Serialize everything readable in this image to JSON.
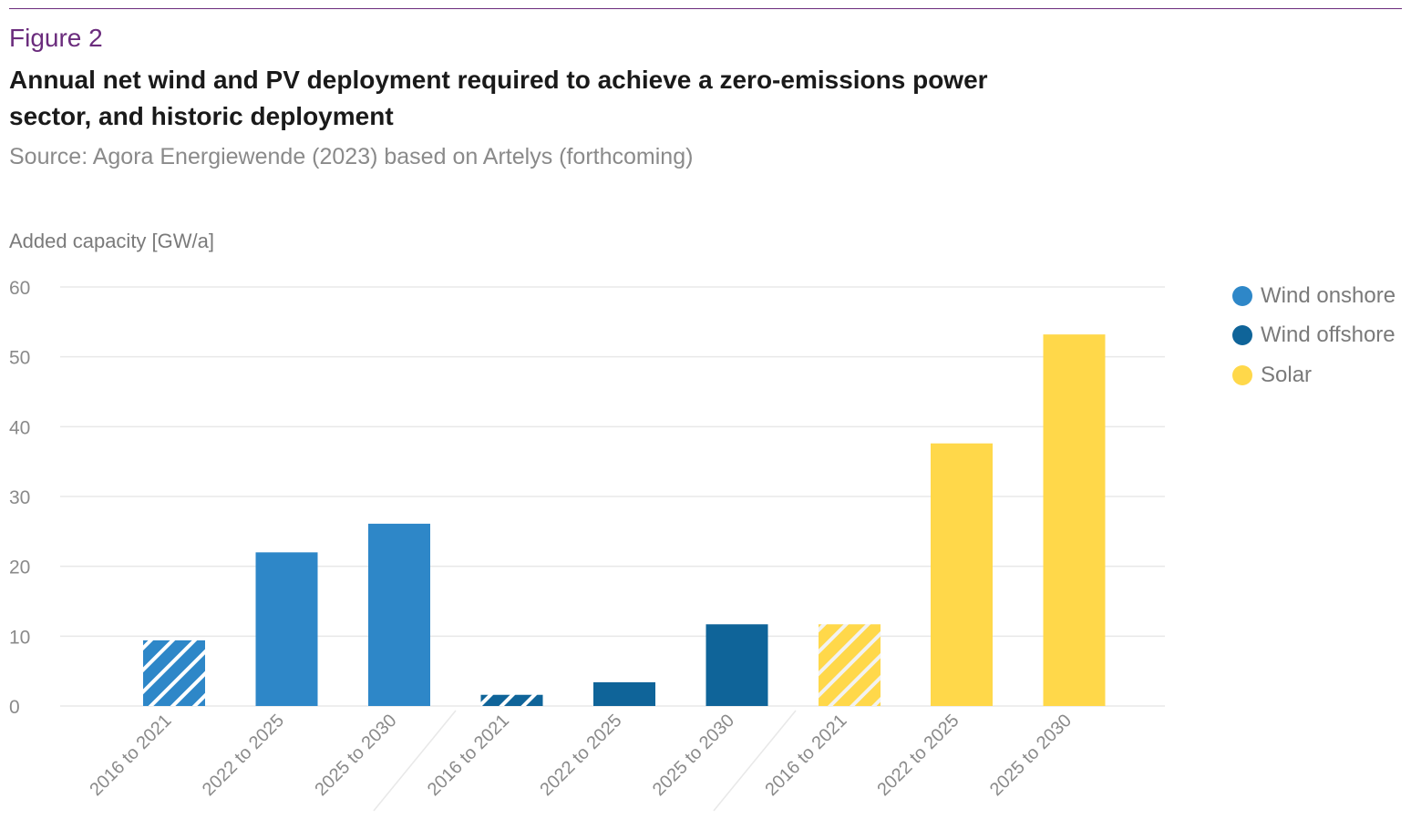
{
  "figure_label": "Figure 2",
  "title": "Annual net wind and PV deployment required to achieve a zero-emissions power sector, and historic deployment",
  "source": "Source: Agora Energiewende (2023) based on Artelys (forthcoming)",
  "colors": {
    "wind_onshore": "#2e87c8",
    "wind_offshore": "#0f6499",
    "solar": "#ffd84a",
    "grid": "#e8e8e8",
    "axis_text": "#8a8a8a",
    "accent": "#6b2c7d"
  },
  "legend": [
    {
      "label": "Wind onshore",
      "color": "#2e87c8"
    },
    {
      "label": "Wind offshore",
      "color": "#0f6499"
    },
    {
      "label": "Solar",
      "color": "#ffd84a"
    }
  ],
  "chart_data": {
    "type": "bar",
    "title": "Annual net wind and PV deployment required to achieve a zero-emissions power sector, and historic deployment",
    "xlabel": "",
    "ylabel": "Added capacity [GW/a]",
    "ylim": [
      0,
      60
    ],
    "yticks": [
      0,
      10,
      20,
      30,
      40,
      50,
      60
    ],
    "grid": true,
    "legend_position": "right",
    "categories": [
      "2016 to 2021",
      "2022 to 2025",
      "2025 to 2030",
      "2016 to 2021",
      "2022 to 2025",
      "2025 to 2030",
      "2016 to 2021",
      "2022 to 2025",
      "2025 to 2030"
    ],
    "bars": [
      {
        "category": "2016 to 2021",
        "series": "Wind onshore",
        "value": 9.4,
        "historic": true
      },
      {
        "category": "2022 to 2025",
        "series": "Wind onshore",
        "value": 22,
        "historic": false
      },
      {
        "category": "2025 to 2030",
        "series": "Wind onshore",
        "value": 26.1,
        "historic": false
      },
      {
        "category": "2016 to 2021",
        "series": "Wind offshore",
        "value": 1.6,
        "historic": true
      },
      {
        "category": "2022 to 2025",
        "series": "Wind offshore",
        "value": 3.4,
        "historic": false
      },
      {
        "category": "2025 to 2030",
        "series": "Wind offshore",
        "value": 11.7,
        "historic": false
      },
      {
        "category": "2016 to 2021",
        "series": "Solar",
        "value": 11.7,
        "historic": true
      },
      {
        "category": "2022 to 2025",
        "series": "Solar",
        "value": 37.6,
        "historic": false
      },
      {
        "category": "2025 to 2030",
        "series": "Solar",
        "value": 53.2,
        "historic": false
      }
    ]
  }
}
